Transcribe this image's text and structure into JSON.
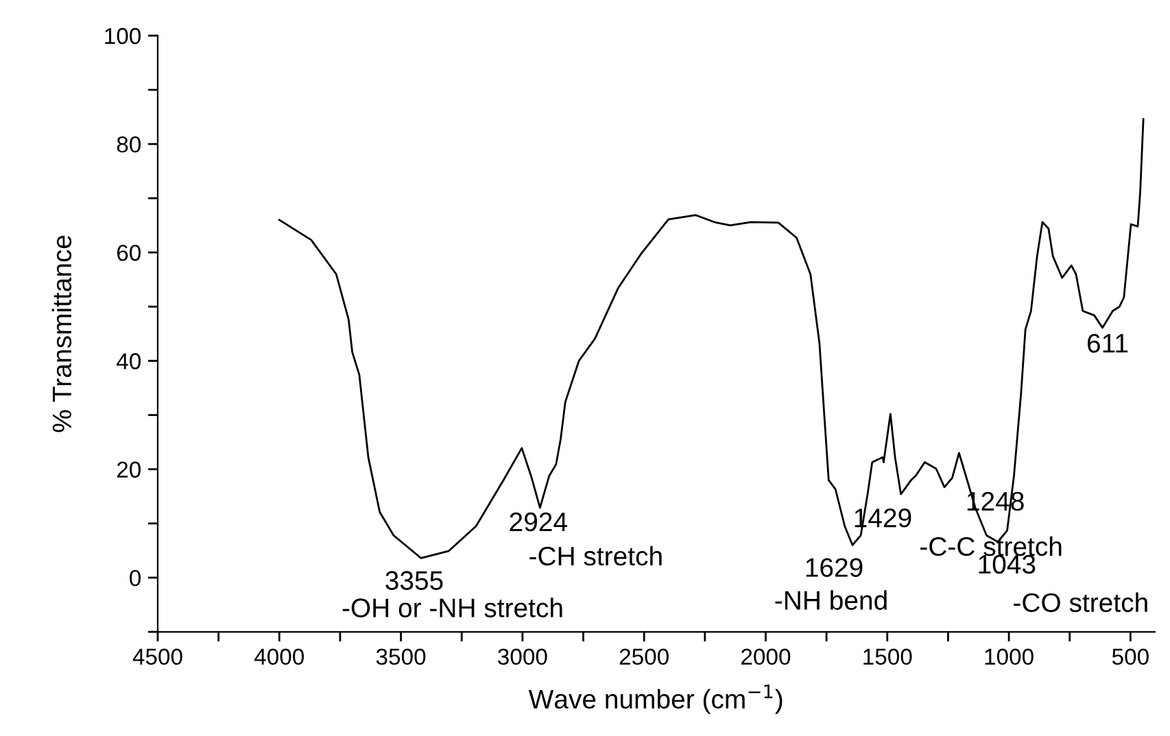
{
  "chart_data": {
    "type": "line",
    "xlabel": "Wave number (cm$^{−1}$)",
    "ylabel": "% Transmittance",
    "xlim": [
      4500,
      400
    ],
    "ylim": [
      -10,
      100
    ],
    "xticks": [
      4500,
      {
        "value": 4250,
        "label": null
      },
      4000,
      {
        "value": 3750,
        "label": null
      },
      3500,
      {
        "value": 3250,
        "label": null
      },
      3000,
      {
        "value": 2750,
        "label": null
      },
      2500,
      {
        "value": 2250,
        "label": null
      },
      2000,
      {
        "value": 1750,
        "label": null
      },
      1500,
      {
        "value": 1250,
        "label": null
      },
      1000,
      {
        "value": 750,
        "label": null
      },
      500
    ],
    "yticks": [
      {
        "value": -10,
        "label": null
      },
      0,
      {
        "value": 10,
        "label": null
      },
      20,
      {
        "value": 30,
        "label": null
      },
      40,
      {
        "value": 50,
        "label": null
      },
      60,
      {
        "value": 70,
        "label": null
      },
      80,
      {
        "value": 90,
        "label": null
      },
      100
    ],
    "marker": "none",
    "line_style": "solid",
    "series": [
      {
        "color": "#000000",
        "x": [
          4000,
          3869,
          3766,
          3715,
          3700,
          3671,
          3634,
          3587,
          3530,
          3417,
          3304,
          3191,
          3078,
          3003,
          2965,
          2928,
          2890,
          2862,
          2843,
          2824,
          2768,
          2702,
          2607,
          2513,
          2400,
          2288,
          2212,
          2146,
          2061,
          1948,
          1873,
          1816,
          1779,
          1760,
          1741,
          1713,
          1675,
          1643,
          1609,
          1581,
          1562,
          1519,
          1515,
          1487,
          1468,
          1444,
          1402,
          1383,
          1346,
          1299,
          1265,
          1233,
          1205,
          1177,
          1138,
          1092,
          1045,
          1007,
          979,
          950,
          932,
          909,
          884,
          862,
          837,
          819,
          781,
          743,
          724,
          696,
          649,
          615,
          573,
          545,
          527,
          498,
          470,
          460,
          447
        ],
        "values": [
          66,
          62.3,
          56,
          47.6,
          41.6,
          37.4,
          22.2,
          12.1,
          7.8,
          3.6,
          4.9,
          9.5,
          18,
          23.9,
          18.8,
          12.9,
          18.8,
          20.9,
          25.6,
          32.4,
          40,
          44.1,
          53.4,
          59.7,
          66.1,
          66.9,
          65.6,
          65,
          65.6,
          65.5,
          62.7,
          56,
          43.3,
          30.6,
          18,
          16.3,
          9.5,
          6,
          7.8,
          15.4,
          21.3,
          22.2,
          21.3,
          30.2,
          22.2,
          15.4,
          18,
          18.8,
          21.3,
          20.1,
          16.7,
          18.4,
          23,
          18.8,
          12.9,
          7.8,
          6.6,
          8.7,
          18.8,
          34,
          45.8,
          49.2,
          59.3,
          65.6,
          64.4,
          59.3,
          55.3,
          57.6,
          56,
          49.2,
          48.4,
          46.1,
          49.2,
          50,
          51.7,
          65.2,
          64.8,
          71.1,
          84.6
        ]
      }
    ],
    "annotations": [
      {
        "text": "3355",
        "x": 3355,
        "y": 3.6
      },
      {
        "text": "-OH or -NH stretch",
        "x": 3355,
        "y": 3.6
      },
      {
        "text": "2924",
        "x": 2924,
        "y": 12.9
      },
      {
        "text": "-CH stretch",
        "x": 2924,
        "y": 12.9
      },
      {
        "text": "1629",
        "x": 1629,
        "y": 6
      },
      {
        "text": "-NH bend",
        "x": 1629,
        "y": 6
      },
      {
        "text": "1429",
        "x": 1429,
        "y": 15.4
      },
      {
        "text": "1248",
        "x": 1248,
        "y": 16.7
      },
      {
        "text": "-C-C stretch",
        "x": 1248,
        "y": 16.7
      },
      {
        "text": "1043",
        "x": 1043,
        "y": 6.6
      },
      {
        "text": "-CO stretch",
        "x": 1043,
        "y": 6.6
      },
      {
        "text": "611",
        "x": 611,
        "y": 46.1
      }
    ]
  }
}
